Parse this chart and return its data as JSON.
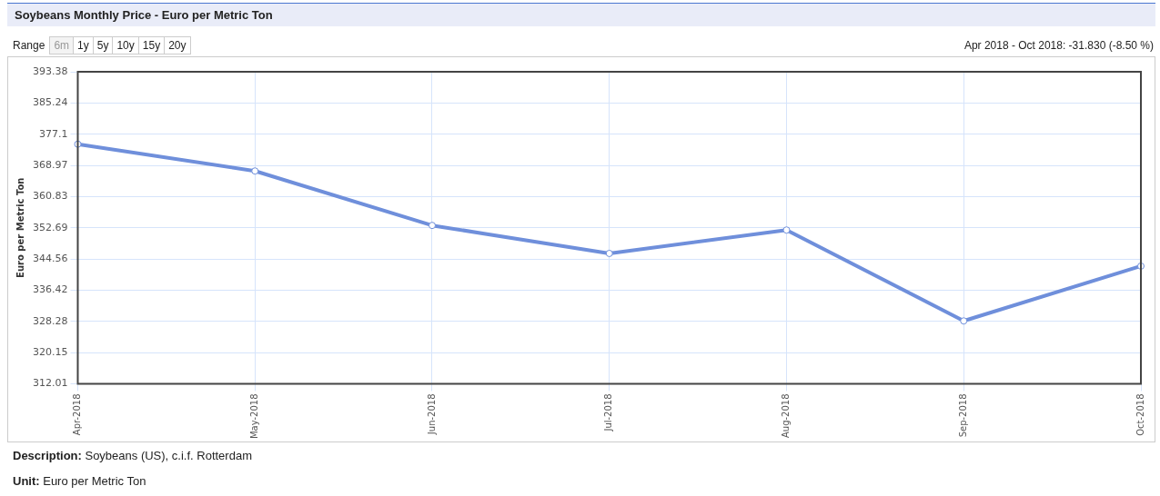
{
  "chart_data": {
    "type": "line",
    "title": "Soybeans Monthly Price - Euro per Metric Ton",
    "ylabel": "Euro per Metric Ton",
    "categories": [
      "Apr-2018",
      "May-2018",
      "Jun-2018",
      "Jul-2018",
      "Aug-2018",
      "Sep-2018",
      "Oct-2018"
    ],
    "series": [
      {
        "color": "#6f8fdb",
        "values": [
          374.5,
          367.5,
          353.3,
          346.0,
          352.1,
          328.4,
          342.7
        ]
      }
    ],
    "ylim": [
      312.01,
      393.38
    ],
    "yticks": [
      312.01,
      320.15,
      328.28,
      336.42,
      344.56,
      352.69,
      360.83,
      368.97,
      377.1,
      385.24,
      393.38
    ],
    "grid": true,
    "marker": "circle",
    "line_style": "solid",
    "legend": false,
    "annotations": [
      "Range",
      "6m",
      "1y",
      "5y",
      "10y",
      "15y",
      "20y",
      "Apr 2018 - Oct 2018: -31.830 (-8.50 %)",
      "Description: Soybeans (US), c.i.f. Rotterdam",
      "Unit: Euro per Metric Ton"
    ]
  }
}
